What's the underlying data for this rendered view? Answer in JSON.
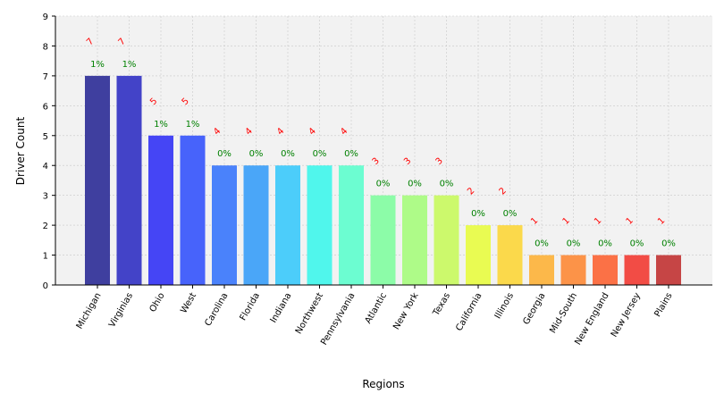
{
  "chart_data": {
    "type": "bar",
    "xlabel": "Regions",
    "ylabel": "Driver Count",
    "ylim": [
      0,
      9
    ],
    "yticks": [
      0,
      1,
      2,
      3,
      4,
      5,
      6,
      7,
      8,
      9
    ],
    "grid": true,
    "categories": [
      "Michigan",
      "Virginias",
      "Ohio",
      "West",
      "Carolina",
      "Florida",
      "Indiana",
      "Northwest",
      "Pennsylvania",
      "Atlantic",
      "New York",
      "Texas",
      "California",
      "Illinois",
      "Georgia",
      "Mid-South",
      "New England",
      "New Jersey",
      "Plains"
    ],
    "values": [
      7,
      7,
      5,
      5,
      4,
      4,
      4,
      4,
      4,
      3,
      3,
      3,
      2,
      2,
      1,
      1,
      1,
      1,
      1
    ],
    "count_labels": [
      "7",
      "7",
      "5",
      "5",
      "4",
      "4",
      "4",
      "4",
      "4",
      "3",
      "3",
      "3",
      "2",
      "2",
      "1",
      "1",
      "1",
      "1",
      "1"
    ],
    "percent_labels": [
      "1%",
      "1%",
      "1%",
      "1%",
      "0%",
      "0%",
      "0%",
      "0%",
      "0%",
      "0%",
      "0%",
      "0%",
      "0%",
      "0%",
      "0%",
      "0%",
      "0%",
      "0%",
      "0%"
    ],
    "bar_colors": [
      "#3f3f9f",
      "#4343c8",
      "#4545f5",
      "#4763fb",
      "#4a82fb",
      "#4aa6f8",
      "#4ccdfa",
      "#50f6ec",
      "#6cfdd1",
      "#8cfca8",
      "#aefb88",
      "#ccf96c",
      "#e9fb52",
      "#fbd94b",
      "#fcb84a",
      "#fc9348",
      "#fb7146",
      "#f24c45",
      "#c64545"
    ],
    "count_label_color": "#ff0000",
    "percent_label_color": "#008000",
    "plot_background": "#f2f2f2"
  }
}
